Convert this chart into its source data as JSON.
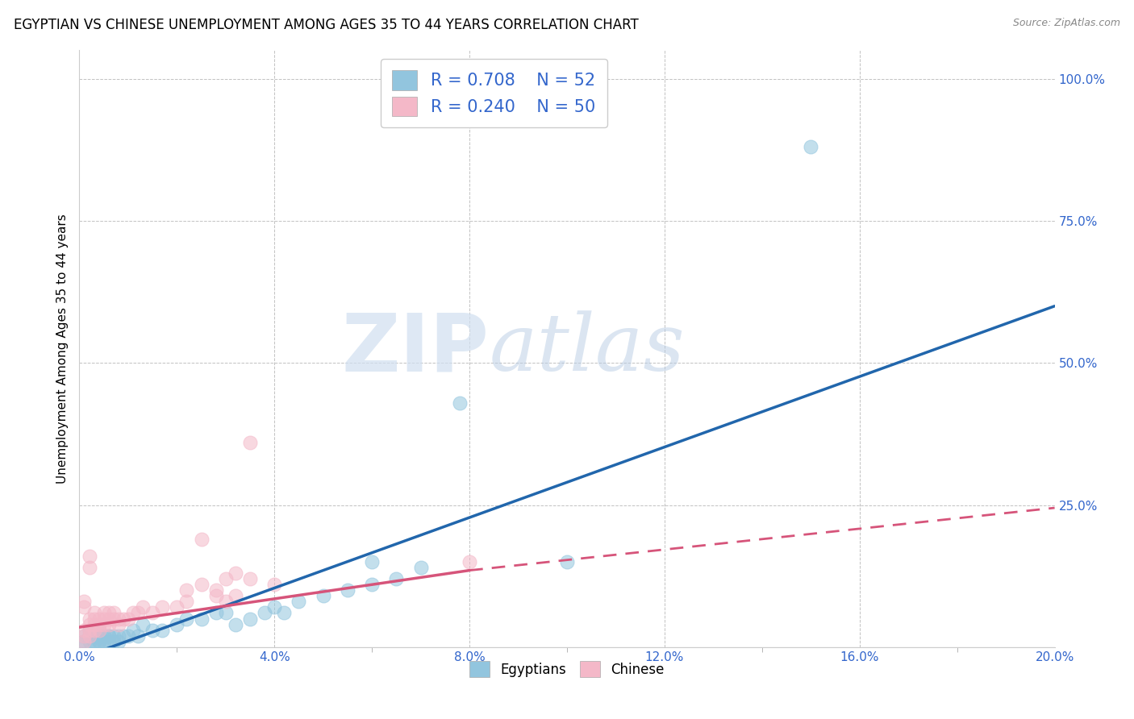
{
  "title": "EGYPTIAN VS CHINESE UNEMPLOYMENT AMONG AGES 35 TO 44 YEARS CORRELATION CHART",
  "source": "Source: ZipAtlas.com",
  "ylabel_label": "Unemployment Among Ages 35 to 44 years",
  "xlim": [
    0.0,
    0.2
  ],
  "ylim": [
    0.0,
    1.05
  ],
  "xticks": [
    0.0,
    0.04,
    0.08,
    0.12,
    0.16,
    0.2
  ],
  "yticks": [
    0.25,
    0.5,
    0.75,
    1.0
  ],
  "ytick_labels": [
    "25.0%",
    "50.0%",
    "75.0%",
    "100.0%"
  ],
  "xtick_labels": [
    "0.0%",
    "4.0%",
    "8.0%",
    "12.0%",
    "16.0%",
    "20.0%"
  ],
  "egyptian_color": "#92c5de",
  "chinese_color": "#f4b8c8",
  "egyptian_line_color": "#2166ac",
  "chinese_line_color": "#d6547a",
  "egyptian_R": 0.708,
  "egyptian_N": 52,
  "chinese_R": 0.24,
  "chinese_N": 50,
  "legend_text_color": "#3366cc",
  "watermark_zip": "ZIP",
  "watermark_atlas": "atlas",
  "background_color": "#ffffff",
  "grid_color": "#bbbbbb",
  "title_fontsize": 12,
  "axis_label_fontsize": 11,
  "tick_fontsize": 11,
  "tick_label_color": "#3366cc",
  "egyptian_scatter_x": [
    0.001,
    0.001,
    0.001,
    0.002,
    0.002,
    0.002,
    0.002,
    0.003,
    0.003,
    0.003,
    0.003,
    0.004,
    0.004,
    0.004,
    0.004,
    0.005,
    0.005,
    0.005,
    0.006,
    0.006,
    0.006,
    0.007,
    0.007,
    0.008,
    0.008,
    0.009,
    0.01,
    0.011,
    0.012,
    0.013,
    0.015,
    0.017,
    0.02,
    0.022,
    0.025,
    0.028,
    0.03,
    0.032,
    0.035,
    0.038,
    0.04,
    0.042,
    0.045,
    0.05,
    0.055,
    0.06,
    0.06,
    0.065,
    0.07,
    0.078,
    0.1,
    0.15
  ],
  "egyptian_scatter_y": [
    0.01,
    0.02,
    0.01,
    0.02,
    0.01,
    0.02,
    0.03,
    0.01,
    0.02,
    0.01,
    0.02,
    0.01,
    0.02,
    0.01,
    0.03,
    0.01,
    0.02,
    0.01,
    0.02,
    0.01,
    0.02,
    0.01,
    0.02,
    0.02,
    0.01,
    0.02,
    0.02,
    0.03,
    0.02,
    0.04,
    0.03,
    0.03,
    0.04,
    0.05,
    0.05,
    0.06,
    0.06,
    0.04,
    0.05,
    0.06,
    0.07,
    0.06,
    0.08,
    0.09,
    0.1,
    0.11,
    0.15,
    0.12,
    0.14,
    0.43,
    0.15,
    0.88
  ],
  "chinese_scatter_x": [
    0.001,
    0.001,
    0.001,
    0.002,
    0.002,
    0.002,
    0.002,
    0.003,
    0.003,
    0.003,
    0.003,
    0.004,
    0.004,
    0.004,
    0.005,
    0.005,
    0.005,
    0.006,
    0.006,
    0.006,
    0.007,
    0.007,
    0.008,
    0.008,
    0.009,
    0.01,
    0.011,
    0.012,
    0.013,
    0.015,
    0.017,
    0.02,
    0.022,
    0.025,
    0.028,
    0.03,
    0.032,
    0.022,
    0.025,
    0.028,
    0.03,
    0.032,
    0.035,
    0.035,
    0.04,
    0.08,
    0.001,
    0.001,
    0.002,
    0.002
  ],
  "chinese_scatter_y": [
    0.01,
    0.02,
    0.03,
    0.02,
    0.03,
    0.04,
    0.05,
    0.03,
    0.04,
    0.05,
    0.06,
    0.03,
    0.04,
    0.05,
    0.04,
    0.05,
    0.06,
    0.04,
    0.05,
    0.06,
    0.05,
    0.06,
    0.04,
    0.05,
    0.05,
    0.05,
    0.06,
    0.06,
    0.07,
    0.06,
    0.07,
    0.07,
    0.08,
    0.19,
    0.09,
    0.08,
    0.09,
    0.1,
    0.11,
    0.1,
    0.12,
    0.13,
    0.12,
    0.36,
    0.11,
    0.15,
    0.07,
    0.08,
    0.14,
    0.16
  ],
  "e_line_x0": 0.0,
  "e_line_y0": -0.02,
  "e_line_x1": 0.2,
  "e_line_y1": 0.6,
  "c_line_solid_x0": 0.0,
  "c_line_solid_y0": 0.035,
  "c_line_solid_x1": 0.08,
  "c_line_solid_y1": 0.135,
  "c_line_dash_x0": 0.08,
  "c_line_dash_y0": 0.135,
  "c_line_dash_x1": 0.2,
  "c_line_dash_y1": 0.245
}
